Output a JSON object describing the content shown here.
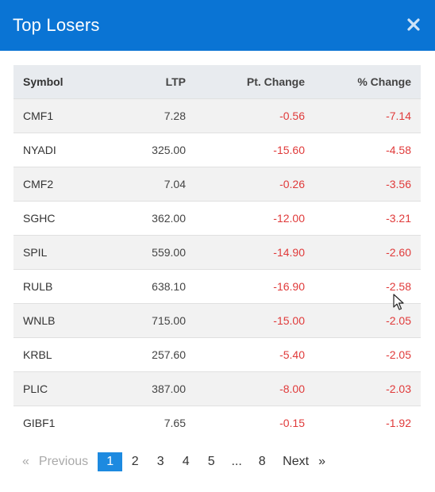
{
  "modal": {
    "title": "Top Losers",
    "close_icon": "close-icon"
  },
  "table": {
    "headers": {
      "symbol": "Symbol",
      "ltp": "LTP",
      "pt_change": "Pt. Change",
      "pct_change": "% Change"
    },
    "rows": [
      {
        "symbol": "CMF1",
        "ltp": "7.28",
        "pt_change": "-0.56",
        "pct_change": "-7.14"
      },
      {
        "symbol": "NYADI",
        "ltp": "325.00",
        "pt_change": "-15.60",
        "pct_change": "-4.58"
      },
      {
        "symbol": "CMF2",
        "ltp": "7.04",
        "pt_change": "-0.26",
        "pct_change": "-3.56"
      },
      {
        "symbol": "SGHC",
        "ltp": "362.00",
        "pt_change": "-12.00",
        "pct_change": "-3.21"
      },
      {
        "symbol": "SPIL",
        "ltp": "559.00",
        "pt_change": "-14.90",
        "pct_change": "-2.60"
      },
      {
        "symbol": "RULB",
        "ltp": "638.10",
        "pt_change": "-16.90",
        "pct_change": "-2.58"
      },
      {
        "symbol": "WNLB",
        "ltp": "715.00",
        "pt_change": "-15.00",
        "pct_change": "-2.05"
      },
      {
        "symbol": "KRBL",
        "ltp": "257.60",
        "pt_change": "-5.40",
        "pct_change": "-2.05"
      },
      {
        "symbol": "PLIC",
        "ltp": "387.00",
        "pt_change": "-8.00",
        "pct_change": "-2.03"
      },
      {
        "symbol": "GIBF1",
        "ltp": "7.65",
        "pt_change": "-0.15",
        "pct_change": "-1.92"
      }
    ]
  },
  "pagination": {
    "first": "«",
    "previous": "Previous",
    "pages": [
      "1",
      "2",
      "3",
      "4",
      "5",
      "...",
      "8"
    ],
    "current": "1",
    "next": "Next",
    "last": "»"
  },
  "colors": {
    "header": "#0a74d4",
    "negative": "#e03a3a",
    "current_page": "#1d8ae0"
  }
}
